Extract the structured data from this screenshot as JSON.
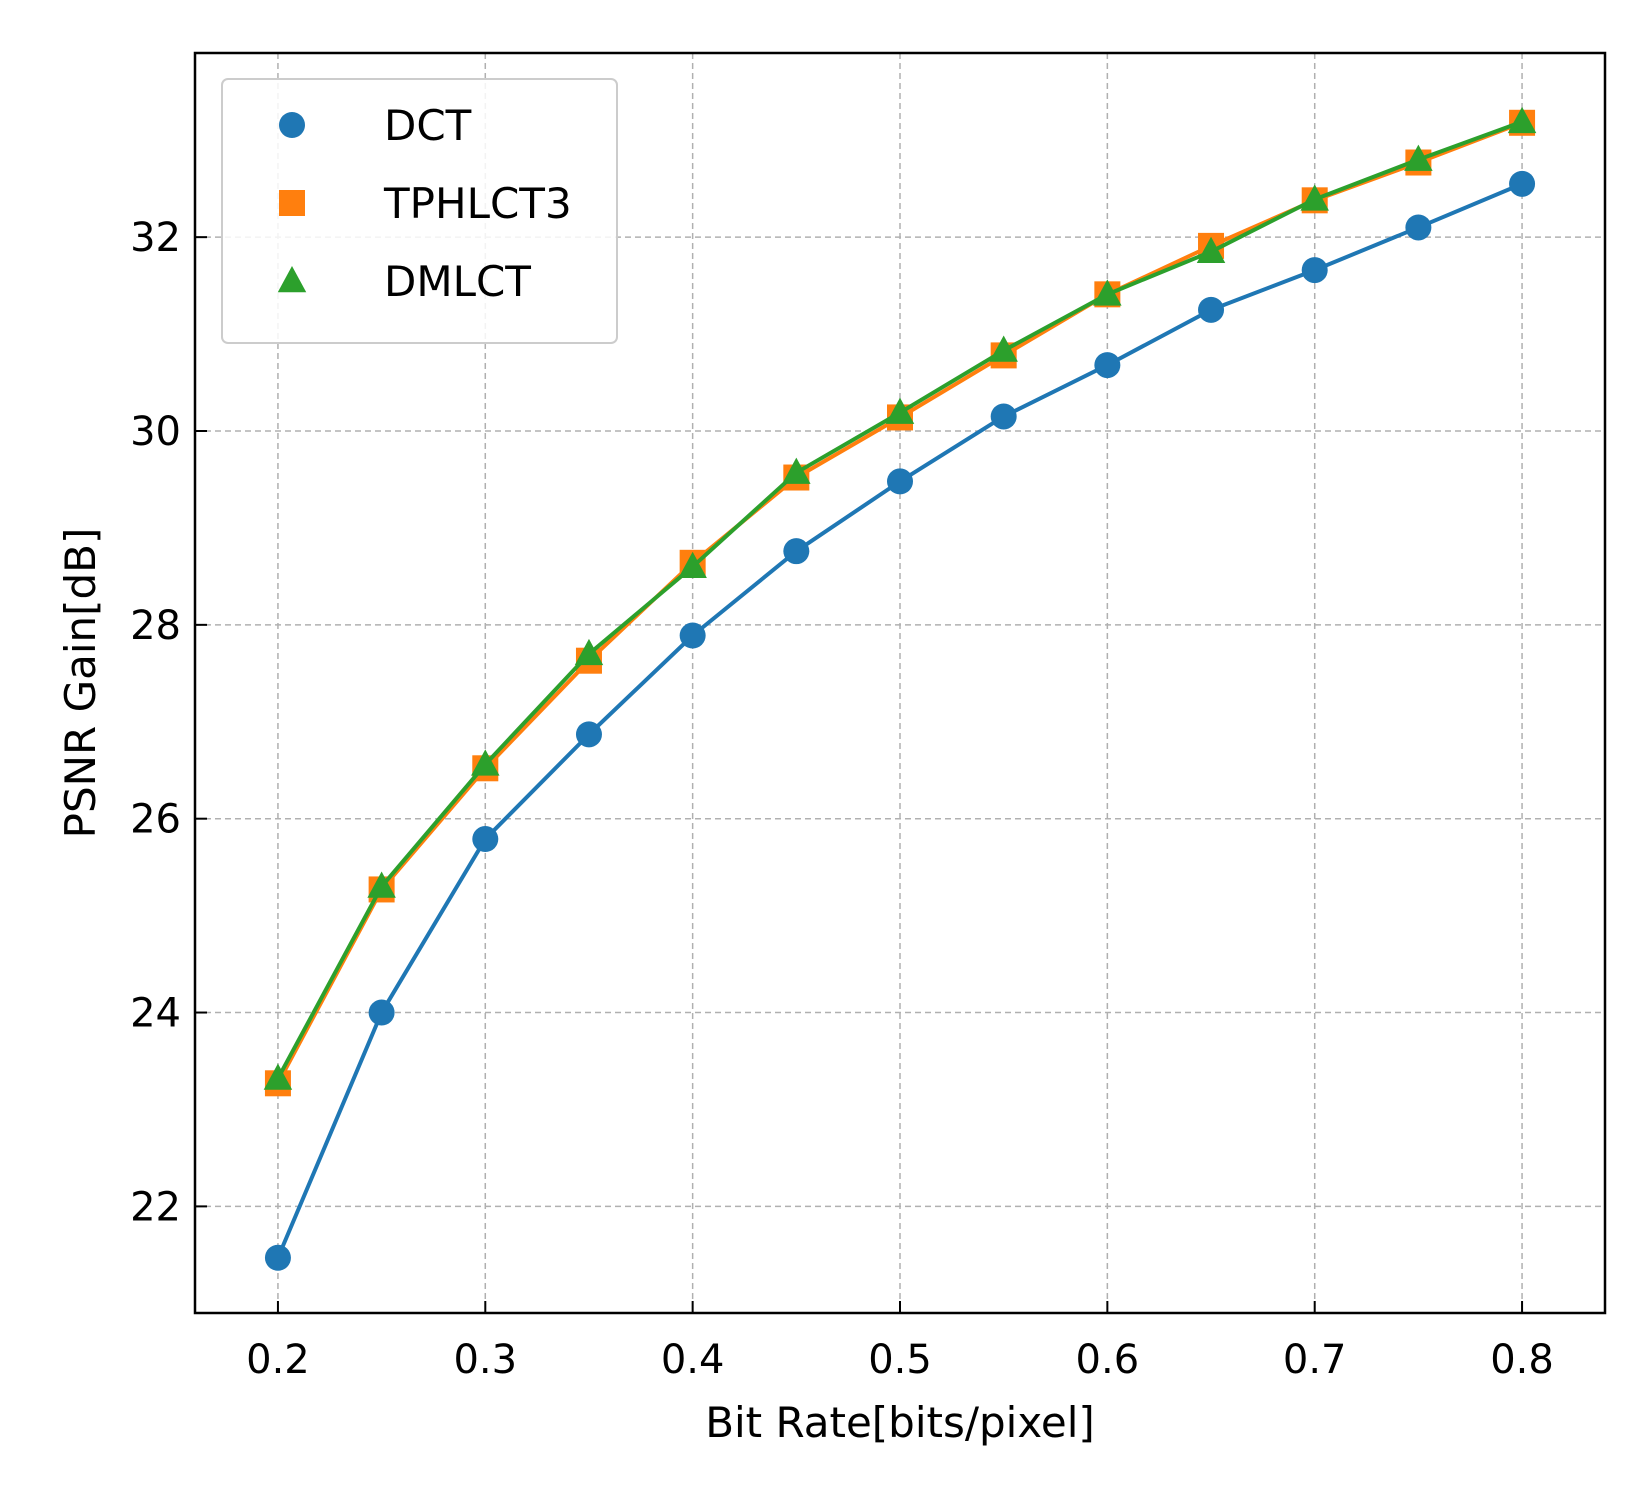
{
  "chart_data": {
    "type": "line",
    "title": "",
    "xlabel": "Bit Rate[bits/pixel]",
    "ylabel": "PSNR Gain[dB]",
    "x": [
      0.2,
      0.25,
      0.3,
      0.35,
      0.4,
      0.45,
      0.5,
      0.55,
      0.6,
      0.65,
      0.7,
      0.75,
      0.8
    ],
    "x_ticks": [
      "0.2",
      "0.3",
      "0.4",
      "0.5",
      "0.6",
      "0.7",
      "0.8"
    ],
    "x_tick_values": [
      0.2,
      0.3,
      0.4,
      0.5,
      0.6,
      0.7,
      0.8
    ],
    "y_ticks": [
      "22",
      "24",
      "26",
      "28",
      "30",
      "32"
    ],
    "y_tick_values": [
      22,
      24,
      26,
      28,
      30,
      32
    ],
    "xlim": [
      0.16,
      0.84
    ],
    "ylim": [
      20.9,
      33.9
    ],
    "grid": true,
    "legend_position": "top-left",
    "series": [
      {
        "name": "DCT",
        "color": "#1f77b4",
        "marker": "circle",
        "values": [
          21.47,
          24.0,
          25.79,
          26.87,
          27.89,
          28.76,
          29.48,
          30.15,
          30.68,
          31.25,
          31.66,
          32.1,
          32.55
        ]
      },
      {
        "name": "TPHLCT3",
        "color": "#ff7f0e",
        "marker": "square",
        "values": [
          23.27,
          25.27,
          26.52,
          27.63,
          28.64,
          29.52,
          30.14,
          30.78,
          31.41,
          31.91,
          32.38,
          32.77,
          33.18
        ]
      },
      {
        "name": "DMLCT",
        "color": "#2ca02c",
        "marker": "triangle",
        "values": [
          23.32,
          25.3,
          26.56,
          27.7,
          28.6,
          29.57,
          30.19,
          30.83,
          31.41,
          31.85,
          32.39,
          32.8,
          33.19
        ]
      }
    ]
  }
}
